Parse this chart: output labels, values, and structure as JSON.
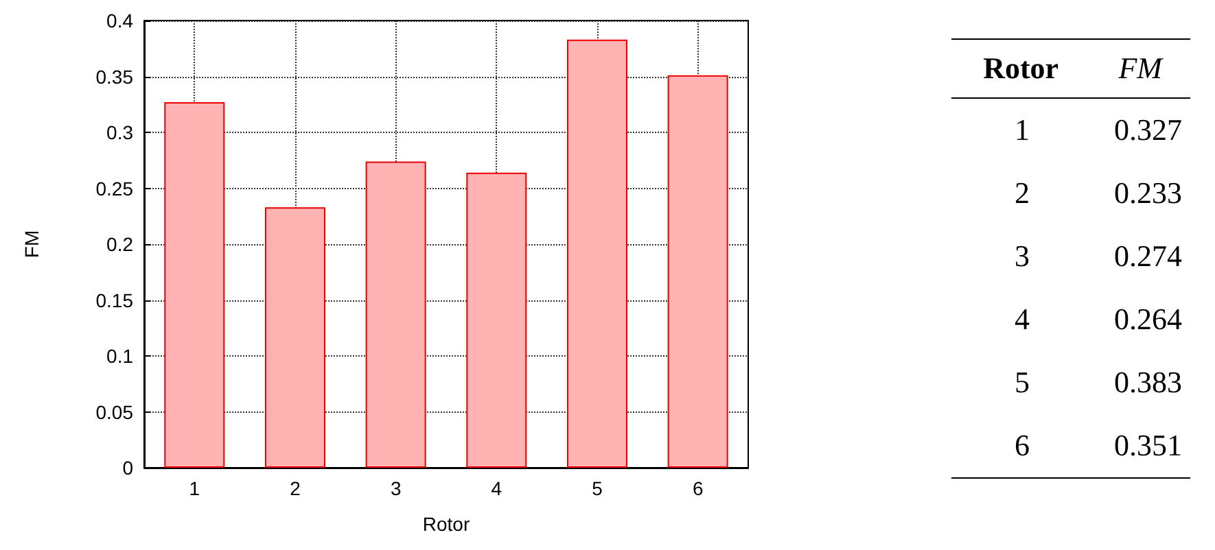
{
  "chart_data": [
    {
      "type": "bar",
      "xlabel": "Rotor",
      "ylabel": "FM",
      "categories": [
        "1",
        "2",
        "3",
        "4",
        "5",
        "6"
      ],
      "values": [
        0.327,
        0.233,
        0.274,
        0.264,
        0.383,
        0.351
      ],
      "color": "#ffb3b3",
      "ylim": [
        0,
        0.4
      ],
      "yticks": [
        0,
        0.05,
        0.1,
        0.15,
        0.2,
        0.25,
        0.3,
        0.35,
        0.4
      ],
      "grid": true
    },
    {
      "type": "other",
      "annotations": [
        "Rotor",
        "FM",
        "1 0.327",
        "2 0.233",
        "3 0.274",
        "4 0.264",
        "5 0.383",
        "6 0.351"
      ]
    }
  ]
}
